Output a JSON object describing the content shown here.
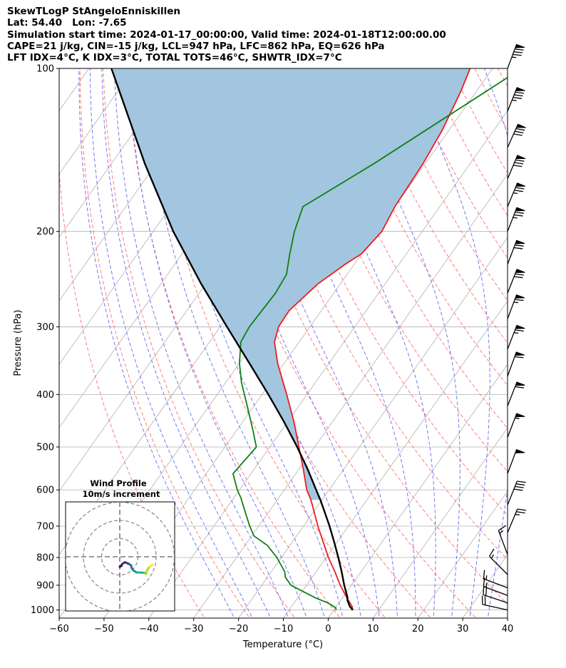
{
  "header": {
    "line1": "SkewTLogP StAngeloEnniskillen",
    "line2": "Lat: 54.40   Lon: -7.65",
    "line3": "Simulation start time: 2024-01-17_00:00:00, Valid time: 2024-01-18T12:00:00.00",
    "line4": "CAPE=21 j/kg, CIN=-15 j/kg, LCL=947 hPa, LFC=862 hPa, EQ=626 hPa",
    "line5": "LFT IDX=4$^\\circ$C, K IDX=3$^\\circ$C, TOTAL TOTS=46$^\\circ$C, SHWTR_IDX=7$^\\circ$C"
  },
  "chart_data": {
    "type": "line",
    "subtype": "skew-T log-P",
    "xlabel": "Temperature ($^\\circ$C)",
    "ylabel": "Pressure (hPa)",
    "xlim": [
      -60,
      40
    ],
    "ylim": [
      1035,
      100
    ],
    "y_scale": "log",
    "x_ticks": [
      "−60",
      "−50",
      "−40",
      "−30",
      "−20",
      "−10",
      "0",
      "10",
      "20",
      "30",
      "40"
    ],
    "y_ticks": [
      "100",
      "200",
      "300",
      "400",
      "500",
      "600",
      "700",
      "800",
      "900",
      "1000"
    ],
    "grid": true,
    "colors": {
      "temperature": "#ee1c1c",
      "dewpoint": "#108010",
      "parcel": "#000000",
      "cape_fill": "#a2c6e0",
      "dry_adiabat": "#ff7070",
      "moist_adiabat": "#6a6af0",
      "isotherm": "#b0b0b0"
    },
    "series": [
      {
        "name": "",
        "role": "temperature",
        "p": [
          1000,
          985,
          950,
          900,
          850,
          800,
          700,
          626,
          600,
          550,
          500,
          450,
          400,
          350,
          320,
          300,
          280,
          250,
          230,
          220,
          200,
          180,
          150,
          130,
          110,
          100
        ],
        "t": [
          4.2,
          3.5,
          1.0,
          -2.5,
          -5.8,
          -9.5,
          -16.8,
          -22.5,
          -25.0,
          -29.0,
          -33.5,
          -38.5,
          -44.5,
          -51.5,
          -55.5,
          -57.0,
          -57.2,
          -55.0,
          -52.0,
          -50.0,
          -49.0,
          -50.0,
          -50.5,
          -51.5,
          -53.5,
          -55.0
        ]
      },
      {
        "name": "",
        "role": "dewpoint",
        "p": [
          1000,
          990,
          970,
          950,
          900,
          870,
          850,
          800,
          760,
          730,
          700,
          650,
          620,
          600,
          560,
          500,
          460,
          420,
          380,
          350,
          320,
          300,
          260,
          240,
          220,
          200,
          180,
          150,
          100
        ],
        "t": [
          0.5,
          0.0,
          -2.5,
          -6.0,
          -13.5,
          -16.0,
          -17.0,
          -21.0,
          -25.0,
          -29.5,
          -32.0,
          -36.0,
          -38.5,
          -40.5,
          -44.0,
          -43.0,
          -47.0,
          -51.5,
          -56.5,
          -60.0,
          -63.0,
          -63.5,
          -63.0,
          -63.5,
          -66.0,
          -68.5,
          -70.5,
          -61.5,
          -43.5
        ]
      },
      {
        "name": "",
        "role": "parcel",
        "p": [
          1000,
          985,
          960,
          947,
          900,
          850,
          800,
          750,
          700,
          650,
          626,
          600,
          550,
          500,
          450,
          400,
          350,
          300,
          250,
          200,
          150,
          100
        ],
        "t": [
          4.2,
          3.0,
          1.5,
          1.0,
          -1.6,
          -4.3,
          -7.3,
          -10.6,
          -14.2,
          -18.3,
          -20.4,
          -22.9,
          -28.0,
          -33.9,
          -40.7,
          -48.6,
          -57.8,
          -68.5,
          -81.0,
          -95.5,
          -112.5,
          -135.0
        ]
      }
    ],
    "wind_barbs": {
      "pressures": [
        100,
        120,
        140,
        160,
        180,
        200,
        230,
        260,
        290,
        330,
        370,
        420,
        480,
        560,
        640,
        720,
        790,
        860,
        910,
        940,
        970,
        1000
      ],
      "u_ms": [
        -15,
        -16,
        -17,
        -16,
        -15,
        -14,
        -13,
        -13,
        -12,
        -12,
        -11,
        -11,
        -10,
        -9,
        -8,
        -5,
        3,
        5,
        8,
        8,
        9,
        9
      ],
      "v_ms": [
        -40,
        -40,
        -38,
        -38,
        -36,
        -36,
        -34,
        -33,
        -32,
        -31,
        -30,
        -28,
        -26,
        -24,
        -20,
        -12,
        -8,
        -5,
        -3,
        -3,
        -3,
        -2
      ]
    },
    "inset": {
      "title": "Wind Profile",
      "subtitle": "10m/s increment",
      "rings_ms": [
        10,
        20,
        30
      ],
      "hodograph": [
        [
          0,
          0.5
        ],
        [
          0.9,
          1.0
        ],
        [
          1.3,
          2.0
        ],
        [
          2.8,
          3.0
        ],
        [
          5.0,
          2.1
        ],
        [
          6.3,
          1.2
        ],
        [
          6.5,
          -0.1
        ],
        [
          7.4,
          -1.4
        ],
        [
          9.2,
          -2.6
        ],
        [
          11.8,
          -2.7
        ],
        [
          13.8,
          -2.8
        ],
        [
          14.4,
          -3.5
        ],
        [
          15.1,
          -1.2
        ],
        [
          16.5,
          0.7
        ],
        [
          18.0,
          1.6
        ]
      ],
      "color_map": "viridis"
    }
  }
}
